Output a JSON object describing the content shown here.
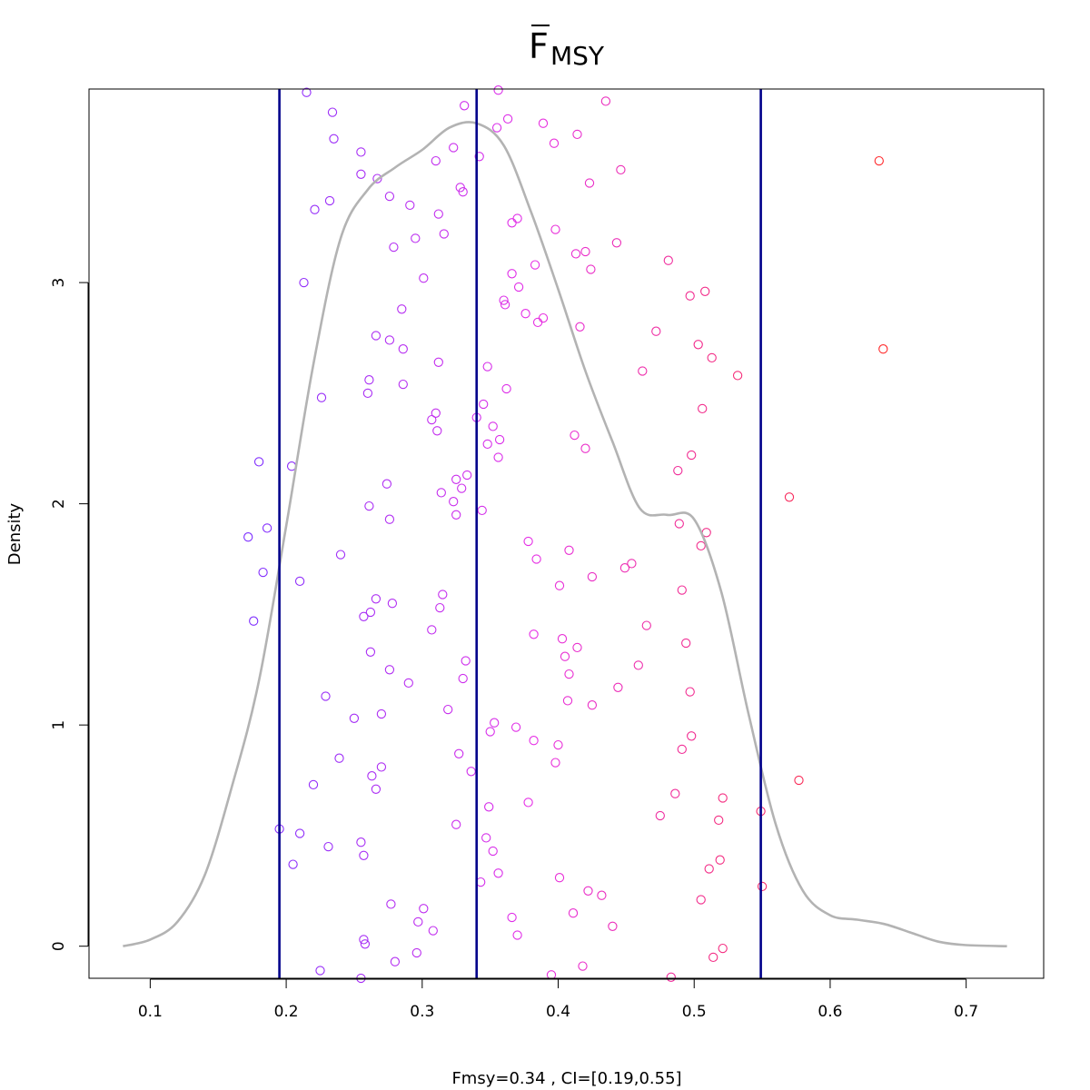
{
  "chart_data": {
    "type": "scatter",
    "title_main": "F",
    "title_sub": "MSY",
    "xlabel": "Fmsy=0.34 , CI=[0.19,0.55]",
    "ylabel": "Density",
    "xlim": [
      0.055,
      0.757
    ],
    "ylim": [
      -0.145,
      3.875
    ],
    "xticks": [
      "0.1",
      "0.2",
      "0.3",
      "0.4",
      "0.5",
      "0.6",
      "0.7"
    ],
    "yticks": [
      "0",
      "1",
      "2",
      "3"
    ],
    "grid": false,
    "vlines": [
      0.195,
      0.34,
      0.549
    ],
    "colors": {
      "vline": "#00008b",
      "density": "#b3b3b3",
      "low": "#7b2cff",
      "mid": "#e62ee6",
      "high": "#ff2a2a"
    },
    "density": {
      "x": [
        0.08,
        0.1,
        0.12,
        0.14,
        0.16,
        0.18,
        0.2,
        0.22,
        0.24,
        0.26,
        0.28,
        0.3,
        0.32,
        0.34,
        0.36,
        0.38,
        0.4,
        0.42,
        0.44,
        0.46,
        0.48,
        0.5,
        0.52,
        0.54,
        0.56,
        0.58,
        0.6,
        0.62,
        0.64,
        0.66,
        0.68,
        0.7,
        0.73
      ],
      "y": [
        0.0,
        0.03,
        0.11,
        0.32,
        0.72,
        1.2,
        1.9,
        2.63,
        3.2,
        3.42,
        3.52,
        3.6,
        3.7,
        3.72,
        3.62,
        3.32,
        2.97,
        2.6,
        2.28,
        1.98,
        1.95,
        1.93,
        1.6,
        1.05,
        0.55,
        0.25,
        0.14,
        0.12,
        0.1,
        0.06,
        0.02,
        0.005,
        0.0
      ]
    },
    "points": [
      [
        0.215,
        3.86
      ],
      [
        0.234,
        3.77
      ],
      [
        0.235,
        3.65
      ],
      [
        0.255,
        3.59
      ],
      [
        0.255,
        3.49
      ],
      [
        0.267,
        3.47
      ],
      [
        0.276,
        3.39
      ],
      [
        0.232,
        3.37
      ],
      [
        0.221,
        3.33
      ],
      [
        0.31,
        3.55
      ],
      [
        0.323,
        3.61
      ],
      [
        0.331,
        3.8
      ],
      [
        0.342,
        3.57
      ],
      [
        0.355,
        3.7
      ],
      [
        0.356,
        3.87
      ],
      [
        0.363,
        3.74
      ],
      [
        0.389,
        3.72
      ],
      [
        0.397,
        3.63
      ],
      [
        0.414,
        3.67
      ],
      [
        0.435,
        3.82
      ],
      [
        0.446,
        3.51
      ],
      [
        0.423,
        3.45
      ],
      [
        0.328,
        3.43
      ],
      [
        0.33,
        3.41
      ],
      [
        0.291,
        3.35
      ],
      [
        0.312,
        3.31
      ],
      [
        0.295,
        3.2
      ],
      [
        0.316,
        3.22
      ],
      [
        0.279,
        3.16
      ],
      [
        0.366,
        3.27
      ],
      [
        0.37,
        3.29
      ],
      [
        0.398,
        3.24
      ],
      [
        0.413,
        3.13
      ],
      [
        0.42,
        3.14
      ],
      [
        0.443,
        3.18
      ],
      [
        0.424,
        3.06
      ],
      [
        0.481,
        3.1
      ],
      [
        0.383,
        3.08
      ],
      [
        0.366,
        3.04
      ],
      [
        0.371,
        2.98
      ],
      [
        0.301,
        3.02
      ],
      [
        0.213,
        3.0
      ],
      [
        0.36,
        2.92
      ],
      [
        0.361,
        2.9
      ],
      [
        0.376,
        2.86
      ],
      [
        0.385,
        2.82
      ],
      [
        0.389,
        2.84
      ],
      [
        0.416,
        2.8
      ],
      [
        0.497,
        2.94
      ],
      [
        0.508,
        2.96
      ],
      [
        0.285,
        2.88
      ],
      [
        0.266,
        2.76
      ],
      [
        0.276,
        2.74
      ],
      [
        0.286,
        2.7
      ],
      [
        0.472,
        2.78
      ],
      [
        0.503,
        2.72
      ],
      [
        0.513,
        2.66
      ],
      [
        0.312,
        2.64
      ],
      [
        0.348,
        2.62
      ],
      [
        0.462,
        2.6
      ],
      [
        0.532,
        2.58
      ],
      [
        0.261,
        2.56
      ],
      [
        0.286,
        2.54
      ],
      [
        0.26,
        2.5
      ],
      [
        0.362,
        2.52
      ],
      [
        0.226,
        2.48
      ],
      [
        0.345,
        2.45
      ],
      [
        0.506,
        2.43
      ],
      [
        0.31,
        2.41
      ],
      [
        0.307,
        2.38
      ],
      [
        0.34,
        2.39
      ],
      [
        0.352,
        2.35
      ],
      [
        0.311,
        2.33
      ],
      [
        0.412,
        2.31
      ],
      [
        0.357,
        2.29
      ],
      [
        0.348,
        2.27
      ],
      [
        0.42,
        2.25
      ],
      [
        0.498,
        2.22
      ],
      [
        0.356,
        2.21
      ],
      [
        0.18,
        2.19
      ],
      [
        0.204,
        2.17
      ],
      [
        0.488,
        2.15
      ],
      [
        0.333,
        2.13
      ],
      [
        0.325,
        2.11
      ],
      [
        0.274,
        2.09
      ],
      [
        0.329,
        2.07
      ],
      [
        0.314,
        2.05
      ],
      [
        0.57,
        2.03
      ],
      [
        0.323,
        2.01
      ],
      [
        0.261,
        1.99
      ],
      [
        0.344,
        1.97
      ],
      [
        0.325,
        1.95
      ],
      [
        0.276,
        1.93
      ],
      [
        0.489,
        1.91
      ],
      [
        0.186,
        1.89
      ],
      [
        0.509,
        1.87
      ],
      [
        0.172,
        1.85
      ],
      [
        0.378,
        1.83
      ],
      [
        0.505,
        1.81
      ],
      [
        0.408,
        1.79
      ],
      [
        0.24,
        1.77
      ],
      [
        0.384,
        1.75
      ],
      [
        0.454,
        1.73
      ],
      [
        0.449,
        1.71
      ],
      [
        0.183,
        1.69
      ],
      [
        0.425,
        1.67
      ],
      [
        0.21,
        1.65
      ],
      [
        0.401,
        1.63
      ],
      [
        0.491,
        1.61
      ],
      [
        0.315,
        1.59
      ],
      [
        0.266,
        1.57
      ],
      [
        0.278,
        1.55
      ],
      [
        0.313,
        1.53
      ],
      [
        0.262,
        1.51
      ],
      [
        0.257,
        1.49
      ],
      [
        0.176,
        1.47
      ],
      [
        0.465,
        1.45
      ],
      [
        0.307,
        1.43
      ],
      [
        0.382,
        1.41
      ],
      [
        0.403,
        1.39
      ],
      [
        0.494,
        1.37
      ],
      [
        0.414,
        1.35
      ],
      [
        0.262,
        1.33
      ],
      [
        0.405,
        1.31
      ],
      [
        0.332,
        1.29
      ],
      [
        0.459,
        1.27
      ],
      [
        0.276,
        1.25
      ],
      [
        0.408,
        1.23
      ],
      [
        0.33,
        1.21
      ],
      [
        0.29,
        1.19
      ],
      [
        0.444,
        1.17
      ],
      [
        0.497,
        1.15
      ],
      [
        0.229,
        1.13
      ],
      [
        0.407,
        1.11
      ],
      [
        0.425,
        1.09
      ],
      [
        0.319,
        1.07
      ],
      [
        0.27,
        1.05
      ],
      [
        0.25,
        1.03
      ],
      [
        0.353,
        1.01
      ],
      [
        0.369,
        0.99
      ],
      [
        0.35,
        0.97
      ],
      [
        0.498,
        0.95
      ],
      [
        0.382,
        0.93
      ],
      [
        0.4,
        0.91
      ],
      [
        0.491,
        0.89
      ],
      [
        0.327,
        0.87
      ],
      [
        0.239,
        0.85
      ],
      [
        0.398,
        0.83
      ],
      [
        0.27,
        0.81
      ],
      [
        0.336,
        0.79
      ],
      [
        0.263,
        0.77
      ],
      [
        0.577,
        0.75
      ],
      [
        0.22,
        0.73
      ],
      [
        0.266,
        0.71
      ],
      [
        0.486,
        0.69
      ],
      [
        0.521,
        0.67
      ],
      [
        0.378,
        0.65
      ],
      [
        0.349,
        0.63
      ],
      [
        0.549,
        0.61
      ],
      [
        0.475,
        0.59
      ],
      [
        0.518,
        0.57
      ],
      [
        0.325,
        0.55
      ],
      [
        0.195,
        0.53
      ],
      [
        0.21,
        0.51
      ],
      [
        0.347,
        0.49
      ],
      [
        0.255,
        0.47
      ],
      [
        0.231,
        0.45
      ],
      [
        0.352,
        0.43
      ],
      [
        0.257,
        0.41
      ],
      [
        0.519,
        0.39
      ],
      [
        0.205,
        0.37
      ],
      [
        0.511,
        0.35
      ],
      [
        0.356,
        0.33
      ],
      [
        0.401,
        0.31
      ],
      [
        0.343,
        0.29
      ],
      [
        0.55,
        0.27
      ],
      [
        0.422,
        0.25
      ],
      [
        0.432,
        0.23
      ],
      [
        0.505,
        0.21
      ],
      [
        0.277,
        0.19
      ],
      [
        0.301,
        0.17
      ],
      [
        0.411,
        0.15
      ],
      [
        0.366,
        0.13
      ],
      [
        0.297,
        0.11
      ],
      [
        0.44,
        0.09
      ],
      [
        0.308,
        0.07
      ],
      [
        0.37,
        0.05
      ],
      [
        0.257,
        0.03
      ],
      [
        0.258,
        0.01
      ],
      [
        0.521,
        -0.01
      ],
      [
        0.296,
        -0.03
      ],
      [
        0.514,
        -0.05
      ],
      [
        0.28,
        -0.07
      ],
      [
        0.418,
        -0.09
      ],
      [
        0.225,
        -0.11
      ],
      [
        0.395,
        -0.13
      ],
      [
        0.483,
        -0.14
      ],
      [
        0.255,
        -0.145
      ],
      [
        0.636,
        3.55
      ],
      [
        0.639,
        2.7
      ]
    ]
  }
}
